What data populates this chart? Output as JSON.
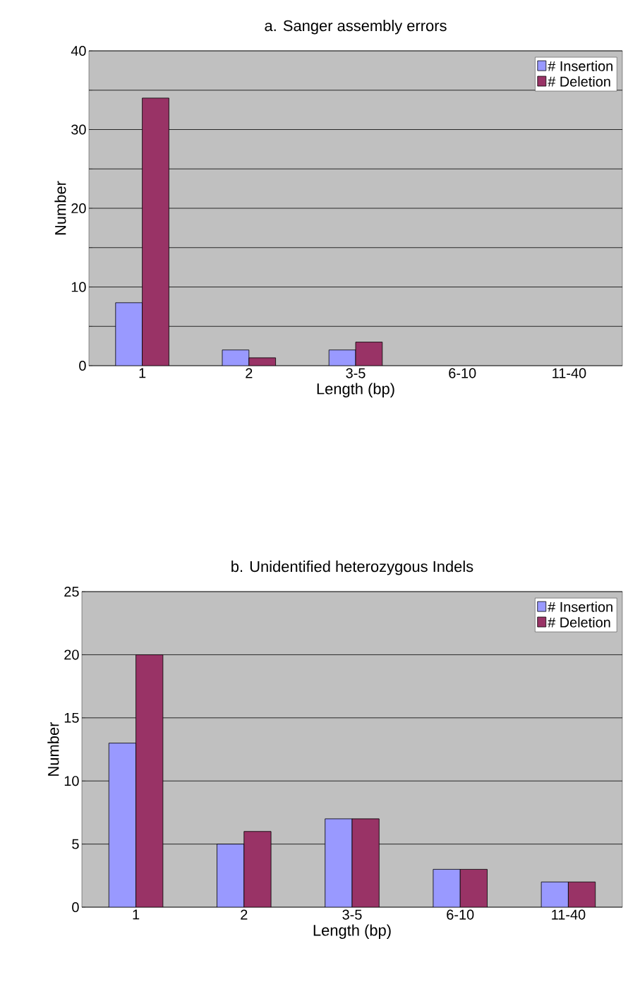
{
  "chart_data": [
    {
      "type": "bar",
      "title": "a. Sanger assembly errors",
      "xlabel": "Length (bp)",
      "ylabel": "Number",
      "categories": [
        "1",
        "2",
        "3-5",
        "6-10",
        "11-40"
      ],
      "series": [
        {
          "name": "# Insertion",
          "color": "#9999ff",
          "values": [
            8,
            2,
            2,
            0,
            0
          ]
        },
        {
          "name": "# Deletion",
          "color": "#993366",
          "values": [
            34,
            1,
            3,
            0,
            0
          ]
        }
      ],
      "ylim": [
        0,
        40
      ],
      "yticks": [
        0,
        {
          "value": 5,
          "label": null
        },
        10,
        {
          "value": 15,
          "label": null
        },
        20,
        {
          "value": 25,
          "label": null
        },
        30,
        {
          "value": 35,
          "label": null
        },
        40
      ],
      "grid": "y",
      "legend": "top right"
    },
    {
      "type": "bar",
      "title": "b. Unidentified heterozygous Indels",
      "xlabel": "Length (bp)",
      "ylabel": "Number",
      "categories": [
        "1",
        "2",
        "3-5",
        "6-10",
        "11-40"
      ],
      "series": [
        {
          "name": "# Insertion",
          "color": "#9999ff",
          "values": [
            13,
            5,
            7,
            3,
            2
          ]
        },
        {
          "name": "# Deletion",
          "color": "#993366",
          "values": [
            20,
            6,
            7,
            3,
            2
          ]
        }
      ],
      "ylim": [
        0,
        25
      ],
      "yticks": [
        0,
        5,
        10,
        15,
        20,
        25
      ],
      "grid": "y",
      "legend": "top right"
    }
  ]
}
